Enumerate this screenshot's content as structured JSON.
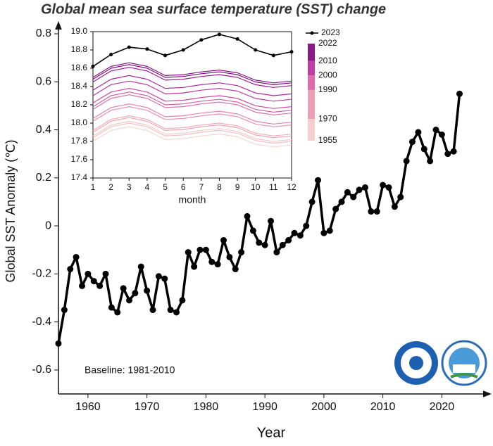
{
  "chart_data": [
    {
      "type": "line",
      "title": "Global mean sea surface temperature (SST) change",
      "x_label": "Year",
      "y_label": "Global SST Anomaly (℃)",
      "annotation": "Baseline: 1981-2010",
      "x": [
        1955,
        1956,
        1957,
        1958,
        1959,
        1960,
        1961,
        1962,
        1963,
        1964,
        1965,
        1966,
        1967,
        1968,
        1969,
        1970,
        1971,
        1972,
        1973,
        1974,
        1975,
        1976,
        1977,
        1978,
        1979,
        1980,
        1981,
        1982,
        1983,
        1984,
        1985,
        1986,
        1987,
        1988,
        1989,
        1990,
        1991,
        1992,
        1993,
        1994,
        1995,
        1996,
        1997,
        1998,
        1999,
        2000,
        2001,
        2002,
        2003,
        2004,
        2005,
        2006,
        2007,
        2008,
        2009,
        2010,
        2011,
        2012,
        2013,
        2014,
        2015,
        2016,
        2017,
        2018,
        2019,
        2020,
        2021,
        2022,
        2023
      ],
      "series": [
        {
          "color": "#000000",
          "values": [
            -0.49,
            -0.35,
            -0.18,
            -0.13,
            -0.25,
            -0.2,
            -0.23,
            -0.25,
            -0.2,
            -0.34,
            -0.36,
            -0.26,
            -0.31,
            -0.28,
            -0.17,
            -0.27,
            -0.35,
            -0.21,
            -0.22,
            -0.35,
            -0.36,
            -0.31,
            -0.11,
            -0.17,
            -0.1,
            -0.1,
            -0.15,
            -0.16,
            -0.06,
            -0.13,
            -0.18,
            -0.11,
            0.04,
            -0.02,
            -0.07,
            -0.08,
            0.02,
            -0.11,
            -0.08,
            -0.06,
            -0.03,
            -0.04,
            0,
            0.1,
            0.19,
            -0.03,
            -0.02,
            0.07,
            0.1,
            0.14,
            0.12,
            0.15,
            0.16,
            0.06,
            0.06,
            0.17,
            0.16,
            0.08,
            0.12,
            0.27,
            0.35,
            0.39,
            0.32,
            0.27,
            0.4,
            0.38,
            0.3,
            0.31,
            0.55
          ]
        }
      ],
      "xlim": [
        1955,
        2027
      ],
      "xticks": [
        1960,
        1970,
        1980,
        1990,
        2000,
        2010,
        2020
      ],
      "ylim": [
        -0.7,
        0.8
      ],
      "yticks": [
        -0.6,
        -0.4,
        -0.2,
        0,
        0.2,
        0.4,
        0.6,
        0.8
      ],
      "markers": true
    },
    {
      "type": "line",
      "x_label": "month",
      "x": [
        1,
        2,
        3,
        4,
        5,
        6,
        7,
        8,
        9,
        10,
        11,
        12
      ],
      "series": [
        {
          "color": "#f7d6d2",
          "values": [
            17.8,
            17.92,
            17.96,
            17.92,
            17.82,
            17.83,
            17.86,
            17.88,
            17.85,
            17.77,
            17.74,
            17.76
          ]
        },
        {
          "color": "#f5ccc9",
          "values": [
            17.86,
            17.98,
            18.02,
            17.98,
            17.88,
            17.89,
            17.92,
            17.94,
            17.91,
            17.83,
            17.8,
            17.82
          ]
        },
        {
          "color": "#f3c0c0",
          "values": [
            17.84,
            17.96,
            18.0,
            17.96,
            17.86,
            17.87,
            17.9,
            17.92,
            17.89,
            17.81,
            17.78,
            17.8
          ]
        },
        {
          "color": "#f0b1b8",
          "values": [
            17.92,
            18.04,
            18.08,
            18.04,
            17.94,
            17.95,
            17.98,
            18.0,
            17.97,
            17.89,
            17.86,
            17.88
          ]
        },
        {
          "color": "#eda3b3",
          "values": [
            17.9,
            18.02,
            18.06,
            18.02,
            17.92,
            17.93,
            17.96,
            17.98,
            17.95,
            17.87,
            17.84,
            17.86
          ]
        },
        {
          "color": "#e893b0",
          "values": [
            18.02,
            18.14,
            18.18,
            18.14,
            18.04,
            18.05,
            18.08,
            18.1,
            18.07,
            17.99,
            17.96,
            17.98
          ]
        },
        {
          "color": "#e283ad",
          "values": [
            18.05,
            18.17,
            18.21,
            18.17,
            18.07,
            18.08,
            18.11,
            18.13,
            18.1,
            18.02,
            17.99,
            18.01
          ]
        },
        {
          "color": "#db70aa",
          "values": [
            18.15,
            18.27,
            18.31,
            18.27,
            18.17,
            18.18,
            18.21,
            18.23,
            18.2,
            18.12,
            18.09,
            18.11
          ]
        },
        {
          "color": "#d25ea8",
          "values": [
            18.18,
            18.3,
            18.34,
            18.3,
            18.2,
            18.21,
            18.24,
            18.26,
            18.23,
            18.15,
            18.12,
            18.14
          ]
        },
        {
          "color": "#c84ca5",
          "values": [
            18.22,
            18.34,
            18.38,
            18.34,
            18.24,
            18.25,
            18.28,
            18.3,
            18.27,
            18.19,
            18.16,
            18.18
          ]
        },
        {
          "color": "#bb3aa1",
          "values": [
            18.3,
            18.42,
            18.46,
            18.42,
            18.32,
            18.33,
            18.36,
            18.38,
            18.35,
            18.27,
            18.24,
            18.26
          ]
        },
        {
          "color": "#ac2a9a",
          "values": [
            18.36,
            18.48,
            18.52,
            18.48,
            18.38,
            18.39,
            18.42,
            18.44,
            18.41,
            18.33,
            18.3,
            18.32
          ]
        },
        {
          "color": "#9c1d92",
          "values": [
            18.45,
            18.57,
            18.61,
            18.57,
            18.47,
            18.48,
            18.51,
            18.53,
            18.5,
            18.42,
            18.39,
            18.41
          ]
        },
        {
          "color": "#8c1488",
          "values": [
            18.5,
            18.62,
            18.66,
            18.62,
            18.52,
            18.53,
            18.56,
            18.58,
            18.55,
            18.47,
            18.44,
            18.46
          ]
        },
        {
          "color": "#7b0f7a",
          "values": [
            18.48,
            18.6,
            18.64,
            18.6,
            18.5,
            18.51,
            18.54,
            18.56,
            18.53,
            18.45,
            18.42,
            18.44
          ]
        },
        {
          "name": "2023",
          "color": "#000000",
          "markers": true,
          "values": [
            18.62,
            18.75,
            18.83,
            18.81,
            18.74,
            18.8,
            18.91,
            18.97,
            18.92,
            18.8,
            18.74,
            18.78
          ]
        }
      ],
      "xlim": [
        1,
        12
      ],
      "xticks": [
        1,
        2,
        3,
        4,
        5,
        6,
        7,
        8,
        9,
        10,
        11,
        12
      ],
      "ylim": [
        17.4,
        19.0
      ],
      "yticks": [
        17.4,
        17.6,
        17.8,
        {
          "value": 18,
          "label": "18.0"
        },
        18.2,
        18.4,
        18.6,
        18.8,
        {
          "value": 19,
          "label": "19.0"
        }
      ],
      "colorbar_lim": [
        1955,
        2022
      ],
      "colorbar_ticks": [
        2022,
        2010,
        2000,
        1990,
        1970,
        1955
      ],
      "colorbar_colors": [
        "#8b1a89",
        "#c03ea3",
        "#e06aab",
        "#ee9fb6",
        "#f6cfcc"
      ]
    }
  ]
}
